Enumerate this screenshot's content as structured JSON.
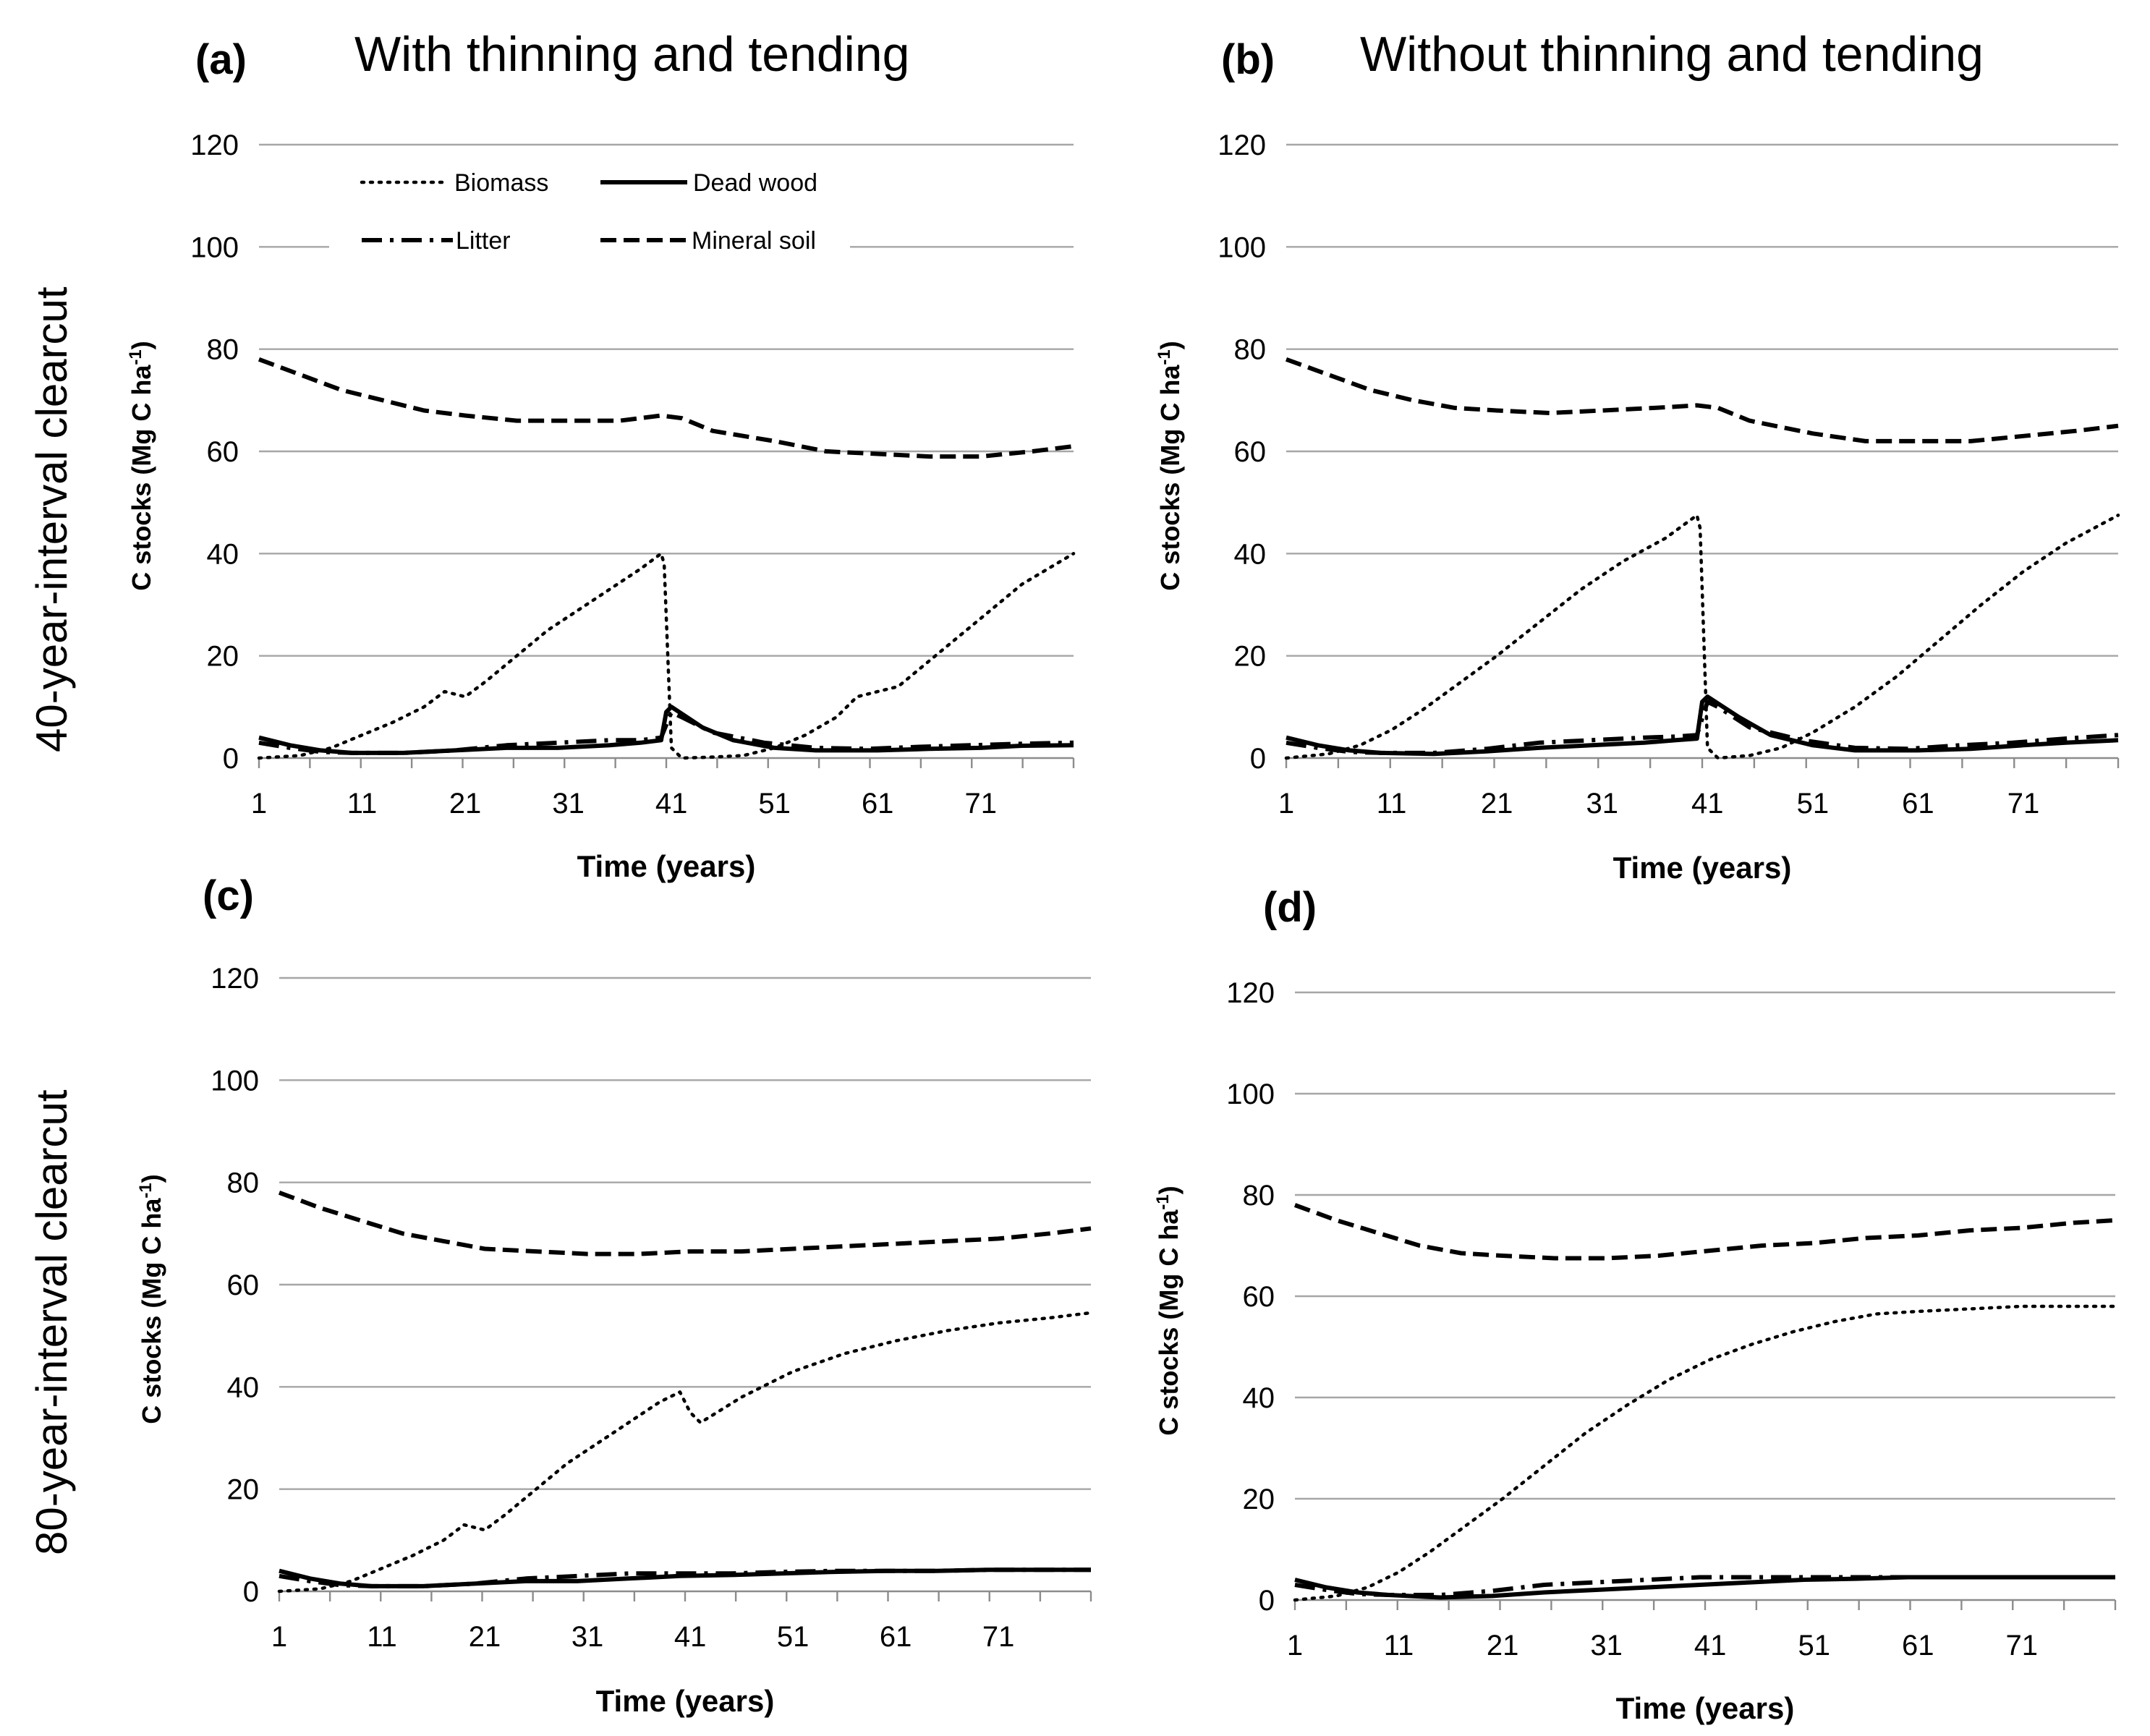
{
  "figure": {
    "col_titles": [
      "With thinning and tending",
      "Without thinning and tending"
    ],
    "row_titles": [
      "40-year-interval clearcut",
      "80-year-interval clearcut"
    ]
  },
  "legend": {
    "biomass": "Biomass",
    "dead_wood": "Dead wood",
    "litter": "Litter",
    "mineral_soil": "Mineral soil"
  },
  "chart_data": [
    {
      "type": "line",
      "panel": "(a)",
      "title": "With thinning and tending",
      "xlabel": "Time (years)",
      "ylabel": "C stocks (Mg C ha-1)",
      "ylim": [
        0,
        120
      ],
      "xlim": [
        1,
        80
      ],
      "xticks": [
        "1",
        "11",
        "21",
        "31",
        "41",
        "51",
        "61",
        "71"
      ],
      "yticks": [
        "0",
        "20",
        "40",
        "60",
        "80",
        "100",
        "120"
      ],
      "legend": "top-left",
      "series": [
        {
          "name": "Biomass",
          "x": [
            1,
            5,
            8,
            11,
            14,
            17,
            19,
            21,
            23,
            26,
            29,
            32,
            35,
            38,
            40,
            40.3,
            41,
            42,
            45,
            48,
            51,
            54,
            57,
            59,
            61,
            63,
            66,
            69,
            72,
            75,
            80
          ],
          "y": [
            0,
            0.5,
            2,
            4.5,
            7,
            10,
            13,
            12,
            15,
            20,
            25,
            29,
            33,
            37,
            40,
            38,
            2,
            0,
            0.2,
            0.5,
            2,
            4.5,
            8,
            12,
            13,
            14,
            19,
            24,
            29,
            34,
            40
          ]
        },
        {
          "name": "Dead wood",
          "x": [
            1,
            4,
            7,
            10,
            15,
            20,
            25,
            30,
            35,
            38,
            40,
            40.5,
            41,
            44,
            47,
            51,
            55,
            61,
            66,
            71,
            75,
            80
          ],
          "y": [
            4,
            2.5,
            1.5,
            1,
            1,
            1.5,
            2,
            2,
            2.5,
            3,
            3.5,
            9,
            10,
            6,
            3.5,
            2,
            1.5,
            1.5,
            1.8,
            2,
            2.4,
            2.5
          ]
        },
        {
          "name": "Litter",
          "x": [
            1,
            4,
            7,
            10,
            15,
            20,
            25,
            30,
            35,
            38,
            40,
            41,
            42,
            45,
            50,
            55,
            60,
            65,
            70,
            75,
            80
          ],
          "y": [
            3,
            2,
            1.2,
            1,
            1,
            1.5,
            2.5,
            3,
            3.5,
            3.5,
            4,
            9,
            8,
            5,
            3,
            2,
            1.8,
            2.2,
            2.5,
            2.8,
            3
          ]
        },
        {
          "name": "Mineral soil",
          "x": [
            1,
            5,
            9,
            13,
            17,
            21,
            26,
            31,
            36,
            40,
            42,
            45,
            51,
            56,
            61,
            66,
            71,
            76,
            80
          ],
          "y": [
            78,
            75,
            72,
            70,
            68,
            67,
            66,
            66,
            66,
            67,
            66.5,
            64,
            62,
            60,
            59.5,
            59,
            59,
            60,
            61
          ]
        }
      ]
    },
    {
      "type": "line",
      "panel": "(b)",
      "title": "Without thinning and tending",
      "xlabel": "Time (years)",
      "ylabel": "C stocks (Mg C ha-1)",
      "ylim": [
        0,
        120
      ],
      "xlim": [
        1,
        80
      ],
      "xticks": [
        "1",
        "11",
        "21",
        "31",
        "41",
        "51",
        "61",
        "71"
      ],
      "yticks": [
        "0",
        "20",
        "40",
        "60",
        "80",
        "100",
        "120"
      ],
      "series": [
        {
          "name": "Biomass",
          "x": [
            1,
            5,
            8,
            11,
            14,
            17,
            21,
            25,
            29,
            33,
            37,
            40,
            40.3,
            41,
            42,
            45,
            48,
            51,
            55,
            59,
            63,
            67,
            71,
            75,
            80
          ],
          "y": [
            0,
            0.8,
            2.5,
            5.5,
            9.5,
            14,
            20,
            26.5,
            33,
            38.5,
            43,
            47.5,
            45,
            2,
            0,
            0.5,
            2,
            5,
            10,
            16,
            23,
            30,
            36.5,
            42,
            47.5
          ]
        },
        {
          "name": "Dead wood",
          "x": [
            1,
            4,
            7,
            10,
            15,
            20,
            25,
            30,
            35,
            38,
            40,
            40.5,
            41,
            44,
            47,
            51,
            55,
            61,
            66,
            71,
            75,
            80
          ],
          "y": [
            4,
            2.5,
            1.5,
            1,
            0.8,
            1.3,
            2,
            2.5,
            3,
            3.5,
            3.8,
            11,
            12,
            8,
            4.5,
            2.5,
            1.5,
            1.5,
            1.8,
            2.5,
            3,
            3.5
          ]
        },
        {
          "name": "Litter",
          "x": [
            1,
            4,
            7,
            10,
            15,
            20,
            25,
            30,
            35,
            38,
            40,
            41,
            42,
            45,
            50,
            55,
            60,
            65,
            70,
            75,
            80
          ],
          "y": [
            3,
            2,
            1.2,
            1,
            1,
            1.8,
            3,
            3.5,
            4,
            4.2,
            4.5,
            11,
            10,
            6,
            3.5,
            2,
            1.8,
            2.5,
            3,
            3.8,
            4.5
          ]
        },
        {
          "name": "Mineral soil",
          "x": [
            1,
            5,
            9,
            13,
            17,
            21,
            26,
            31,
            36,
            40,
            42,
            45,
            51,
            56,
            61,
            66,
            71,
            76,
            80
          ],
          "y": [
            78,
            75,
            72,
            70,
            68.5,
            68,
            67.5,
            68,
            68.5,
            69,
            68.5,
            66,
            63.5,
            62,
            62,
            62,
            63,
            64,
            65
          ]
        }
      ]
    },
    {
      "type": "line",
      "panel": "(c)",
      "title": "With thinning and tending",
      "xlabel": "Time (years)",
      "ylabel": "C stocks (Mg C ha-1)",
      "ylim": [
        0,
        120
      ],
      "xlim": [
        1,
        80
      ],
      "xticks": [
        "1",
        "11",
        "21",
        "31",
        "41",
        "51",
        "61",
        "71"
      ],
      "yticks": [
        "0",
        "20",
        "40",
        "60",
        "80",
        "100",
        "120"
      ],
      "series": [
        {
          "name": "Biomass",
          "x": [
            1,
            5,
            8,
            11,
            14,
            17,
            19,
            21,
            23,
            26,
            29,
            32,
            35,
            38,
            40,
            41,
            42,
            46,
            51,
            56,
            61,
            66,
            71,
            76,
            80
          ],
          "y": [
            0,
            0.5,
            2,
            4.5,
            7,
            10,
            13,
            12,
            15,
            20,
            25,
            29,
            33,
            37,
            39,
            35,
            33,
            38,
            43,
            46.5,
            49,
            51,
            52.5,
            53.5,
            54.5
          ]
        },
        {
          "name": "Dead wood",
          "x": [
            1,
            4,
            7,
            10,
            15,
            20,
            25,
            30,
            35,
            40,
            45,
            50,
            55,
            60,
            65,
            70,
            75,
            80
          ],
          "y": [
            4,
            2.5,
            1.5,
            1,
            1,
            1.5,
            2,
            2,
            2.5,
            3,
            3.2,
            3.5,
            3.8,
            4,
            4,
            4.2,
            4.2,
            4.2
          ]
        },
        {
          "name": "Litter",
          "x": [
            1,
            4,
            7,
            10,
            15,
            20,
            25,
            30,
            35,
            40,
            45,
            50,
            55,
            60,
            65,
            70,
            75,
            80
          ],
          "y": [
            3,
            2,
            1.2,
            1,
            1,
            1.5,
            2.5,
            3,
            3.5,
            3.5,
            3.5,
            3.8,
            4,
            4,
            4,
            4.2,
            4.2,
            4.2
          ]
        },
        {
          "name": "Mineral soil",
          "x": [
            1,
            5,
            9,
            13,
            17,
            21,
            26,
            31,
            36,
            41,
            46,
            51,
            56,
            61,
            66,
            71,
            76,
            80
          ],
          "y": [
            78,
            75,
            72.5,
            70,
            68.5,
            67,
            66.5,
            66,
            66,
            66.5,
            66.5,
            67,
            67.5,
            68,
            68.5,
            69,
            70,
            71
          ]
        }
      ]
    },
    {
      "type": "line",
      "panel": "(d)",
      "title": "Without thinning and tending",
      "xlabel": "Time (years)",
      "ylabel": "C stocks (Mg C ha-1)",
      "ylim": [
        0,
        120
      ],
      "xlim": [
        1,
        80
      ],
      "xticks": [
        "1",
        "11",
        "21",
        "31",
        "41",
        "51",
        "61",
        "71"
      ],
      "yticks": [
        "0",
        "20",
        "40",
        "60",
        "80",
        "100",
        "120"
      ],
      "series": [
        {
          "name": "Biomass",
          "x": [
            1,
            5,
            8,
            11,
            14,
            17,
            21,
            25,
            29,
            33,
            37,
            41,
            45,
            49,
            53,
            57,
            61,
            66,
            71,
            76,
            80
          ],
          "y": [
            0,
            0.8,
            2.5,
            5.5,
            9.5,
            14,
            20,
            26.5,
            33,
            38.5,
            43.5,
            47.5,
            50.5,
            53,
            55,
            56.5,
            57,
            57.5,
            58,
            58,
            58
          ]
        },
        {
          "name": "Dead wood",
          "x": [
            1,
            4,
            7,
            10,
            15,
            20,
            25,
            30,
            35,
            40,
            45,
            50,
            55,
            60,
            65,
            70,
            75,
            80
          ],
          "y": [
            4,
            2.5,
            1.5,
            1,
            0.5,
            0.8,
            1.5,
            2,
            2.5,
            3,
            3.5,
            4,
            4.2,
            4.5,
            4.5,
            4.5,
            4.5,
            4.5
          ]
        },
        {
          "name": "Litter",
          "x": [
            1,
            4,
            7,
            10,
            15,
            20,
            25,
            30,
            35,
            40,
            45,
            50,
            55,
            60,
            65,
            70,
            75,
            80
          ],
          "y": [
            3,
            2,
            1.2,
            1,
            1,
            1.8,
            3,
            3.5,
            4,
            4.5,
            4.5,
            4.5,
            4.5,
            4.5,
            4.5,
            4.5,
            4.5,
            4.5
          ]
        },
        {
          "name": "Mineral soil",
          "x": [
            1,
            5,
            9,
            13,
            17,
            21,
            26,
            31,
            36,
            41,
            46,
            51,
            56,
            61,
            66,
            71,
            76,
            80
          ],
          "y": [
            78,
            75,
            72.5,
            70,
            68.5,
            68,
            67.5,
            67.5,
            68,
            69,
            70,
            70.5,
            71.5,
            72,
            73,
            73.5,
            74.5,
            75
          ]
        }
      ]
    }
  ]
}
